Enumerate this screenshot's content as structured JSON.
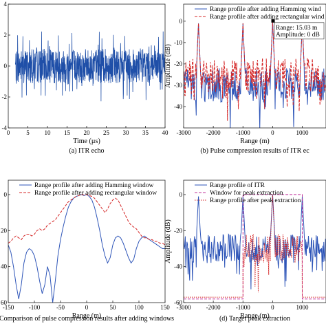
{
  "chart_data": [
    {
      "id": "a",
      "type": "line",
      "caption": "(a) ITR echo",
      "xlabel": "Time (µs)",
      "ylabel": "",
      "xlim": [
        0,
        40
      ],
      "ylim": [
        -4,
        4
      ],
      "xticks": [
        0,
        5,
        10,
        15,
        20,
        25,
        30,
        35,
        40
      ],
      "yticks": [
        -4,
        -2,
        0,
        2,
        4
      ],
      "series": [
        {
          "name": "",
          "color": "#1f4fa8",
          "signal": "noise-band",
          "x_range": [
            1.8,
            40
          ],
          "envelope": 1.1,
          "spike_max": 2.3
        }
      ]
    },
    {
      "id": "b",
      "type": "line",
      "caption": "(b) Pulse compression results of ITR ec",
      "xlabel": "Range (m)",
      "ylabel": "Amplitude (dB)",
      "xlim": [
        -3000,
        1800
      ],
      "ylim": [
        -50,
        8
      ],
      "xticks": [
        -3000,
        -2000,
        -1000,
        0,
        1000
      ],
      "yticks": [
        -40,
        -30,
        -20,
        -10,
        0
      ],
      "series": [
        {
          "name": "Range profile after adding Hamming wind",
          "color": "#2e55b8",
          "style": "solid",
          "floor": -30,
          "peaks": [
            [
              -2500,
              -1
            ],
            [
              -1000,
              -1
            ],
            [
              0,
              0
            ],
            [
              1000,
              -1
            ]
          ]
        },
        {
          "name": "Range profile after adding rectangular wind",
          "color": "#d42424",
          "style": "dashed",
          "floor": -25,
          "peaks": [
            [
              -2500,
              -1
            ],
            [
              -1000,
              -1
            ],
            [
              0,
              0
            ],
            [
              1000,
              -1
            ]
          ]
        }
      ],
      "marker": {
        "x": 15.03,
        "y": 0
      },
      "annotation": [
        "Range: 15.03 m",
        "Amplitude: 0 dB"
      ]
    },
    {
      "id": "c",
      "type": "line",
      "caption": "Comparison of pulse compression results after adding windows",
      "xlabel": "Range (m)",
      "ylabel": "",
      "xlim": [
        -150,
        150
      ],
      "ylim": [
        -60,
        8
      ],
      "xticks": [
        -150,
        -100,
        -50,
        0,
        50,
        100,
        150
      ],
      "yticks": [
        -60,
        -40,
        -20,
        0
      ],
      "ytick_labels": [
        "60",
        "40",
        "20",
        "0"
      ],
      "series": [
        {
          "name": "Range profile after adding Hamming window",
          "color": "#2e55b8",
          "style": "solid",
          "x": [
            -150,
            -145,
            -140,
            -135,
            -130,
            -125,
            -120,
            -115,
            -110,
            -105,
            -100,
            -95,
            -90,
            -85,
            -80,
            -75,
            -70,
            -65,
            -60,
            -55,
            -50,
            -45,
            -40,
            -35,
            -30,
            -25,
            -20,
            -15,
            -10,
            -5,
            0,
            5,
            10,
            15,
            20,
            25,
            30,
            35,
            40,
            45,
            50,
            55,
            60,
            65,
            70,
            75,
            80,
            85,
            90,
            95,
            100,
            105,
            110,
            115,
            120,
            125,
            130,
            135,
            140,
            145,
            150
          ],
          "y": [
            -28,
            -32,
            -40,
            -50,
            -58,
            -50,
            -38,
            -32,
            -30,
            -31,
            -34,
            -40,
            -48,
            -55,
            -50,
            -40,
            -45,
            -60,
            -48,
            -34,
            -25,
            -18,
            -12,
            -7,
            -4,
            -2,
            -1,
            -0.5,
            0,
            -0.5,
            0,
            -1,
            -3,
            -7,
            -13,
            -20,
            -28,
            -34,
            -38,
            -35,
            -28,
            -24,
            -23,
            -24,
            -27,
            -31,
            -35,
            -38,
            -36,
            -30,
            -26,
            -24,
            -23,
            -24,
            -25,
            -26,
            -27,
            -28,
            -29,
            -30,
            -30
          ]
        },
        {
          "name": "Range profile after adding rectangular window",
          "color": "#d42424",
          "style": "dashed",
          "x": [
            -150,
            -145,
            -140,
            -135,
            -130,
            -125,
            -120,
            -115,
            -110,
            -105,
            -100,
            -95,
            -90,
            -85,
            -80,
            -75,
            -70,
            -65,
            -60,
            -55,
            -50,
            -45,
            -40,
            -35,
            -30,
            -25,
            -20,
            -15,
            -10,
            -5,
            0,
            5,
            10,
            15,
            20,
            25,
            30,
            35,
            40,
            45,
            50,
            55,
            60,
            65,
            70,
            75,
            80,
            85,
            90,
            95,
            100,
            105,
            110,
            115,
            120,
            125,
            130,
            135,
            140,
            145,
            150
          ],
          "y": [
            -27,
            -26,
            -24,
            -23,
            -24,
            -25,
            -23,
            -22,
            -22,
            -23,
            -22,
            -20,
            -19,
            -20,
            -19,
            -17,
            -16,
            -15,
            -14,
            -12,
            -10,
            -8,
            -6,
            -4,
            -3,
            -2,
            -1,
            -0.5,
            0,
            -0.2,
            0,
            -0.5,
            -1,
            -2,
            -4,
            -6,
            -8,
            -10,
            -8,
            -5,
            -3,
            -2,
            -3,
            -6,
            -9,
            -12,
            -15,
            -17,
            -18,
            -19,
            -21,
            -23,
            -24,
            -24,
            -25,
            -25,
            -26,
            -26,
            -27,
            -27,
            -28
          ]
        }
      ]
    },
    {
      "id": "d",
      "type": "line",
      "caption": "(d) Target peak extraction",
      "xlabel": "Range (m)",
      "ylabel": "Amplitude (dB)",
      "xlim": [
        -3000,
        1800
      ],
      "ylim": [
        -60,
        8
      ],
      "xticks": [
        -3000,
        -2000,
        -1000,
        0,
        1000
      ],
      "yticks": [
        -60,
        -40,
        -20,
        0
      ],
      "series": [
        {
          "name": "Range profile of ITR",
          "color": "#2e55b8",
          "style": "solid",
          "floor": -30,
          "peaks": [
            [
              -2500,
              -1
            ],
            [
              -1000,
              -1
            ],
            [
              0,
              0
            ],
            [
              1000,
              -1
            ]
          ]
        },
        {
          "name": "Window for peak extraction",
          "color": "#c0309a",
          "style": "dashed",
          "x": [
            -3000,
            -1000,
            -1000,
            1000,
            1000,
            1800
          ],
          "y": [
            -58,
            -58,
            0,
            0,
            -58,
            -58
          ]
        },
        {
          "name": "Range profile after peak extraction",
          "color": "#d42424",
          "style": "dotted",
          "floor": -30,
          "x_range": [
            -1000,
            1000
          ],
          "peaks": [
            [
              0,
              0
            ]
          ],
          "outside": -57
        }
      ]
    }
  ]
}
